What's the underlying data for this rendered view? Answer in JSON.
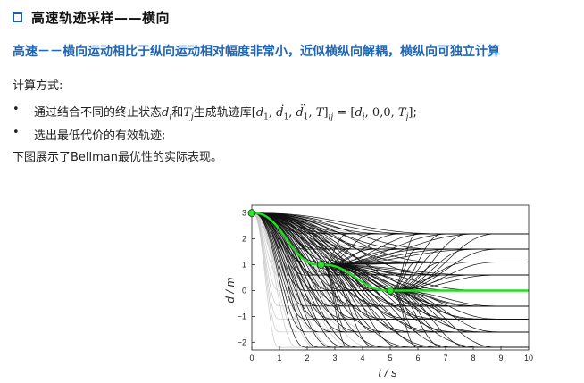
{
  "header": {
    "title": "高速轨迹采样——横向"
  },
  "subtitle": "高速－－横向运动相比于纵向运动相对幅度非常小，近似横纵向解耦，横纵向可独立计算",
  "calc_label": "计算方式:",
  "bullets": [
    {
      "prefix": "通过结合不同的终止状态",
      "middle1": "和",
      "middle2": "生成轨迹库",
      "suffix": ";"
    },
    {
      "text": "选出最低代价的有效轨迹;"
    }
  ],
  "description": "下图展示了Bellman最优性的实际表现。",
  "chart_data": {
    "type": "line",
    "xlabel": "t / s",
    "ylabel": "d / m",
    "xlim": [
      0,
      10
    ],
    "ylim": [
      -2.3,
      3.3
    ],
    "xticks": [
      0,
      1,
      2,
      3,
      4,
      5,
      6,
      7,
      8,
      9,
      10
    ],
    "yticks": [
      -2,
      -1,
      0,
      1,
      2,
      3
    ],
    "grid": false,
    "colors": {
      "gray": "#c8c8c8",
      "black": "#111111",
      "optimal": "#22dd22",
      "marker": "#33dd33"
    },
    "optimal_points": [
      {
        "t": 0,
        "d": 3
      },
      {
        "t": 2.5,
        "d": 1
      },
      {
        "t": 5,
        "d": 0
      }
    ],
    "stage1_end_t": [
      1,
      2,
      3,
      4,
      5,
      6
    ],
    "stage1_end_d": [
      -2.2,
      -1.6,
      -1.1,
      -0.6,
      0,
      0.6,
      1.1,
      1.6,
      2.2
    ],
    "stage2_end_t": [
      3.5,
      4.5,
      5.5,
      6.5,
      7.5,
      8.5
    ],
    "stage3_end_t": [
      6,
      7,
      8,
      9
    ],
    "final_d": [
      -2.2,
      -1.6,
      -1.1,
      -0.6,
      0,
      0.6,
      1.1,
      1.6,
      2.2
    ],
    "optimal_path": [
      [
        0,
        3
      ],
      [
        2.5,
        1
      ],
      [
        5,
        0
      ],
      [
        10,
        0
      ]
    ]
  }
}
